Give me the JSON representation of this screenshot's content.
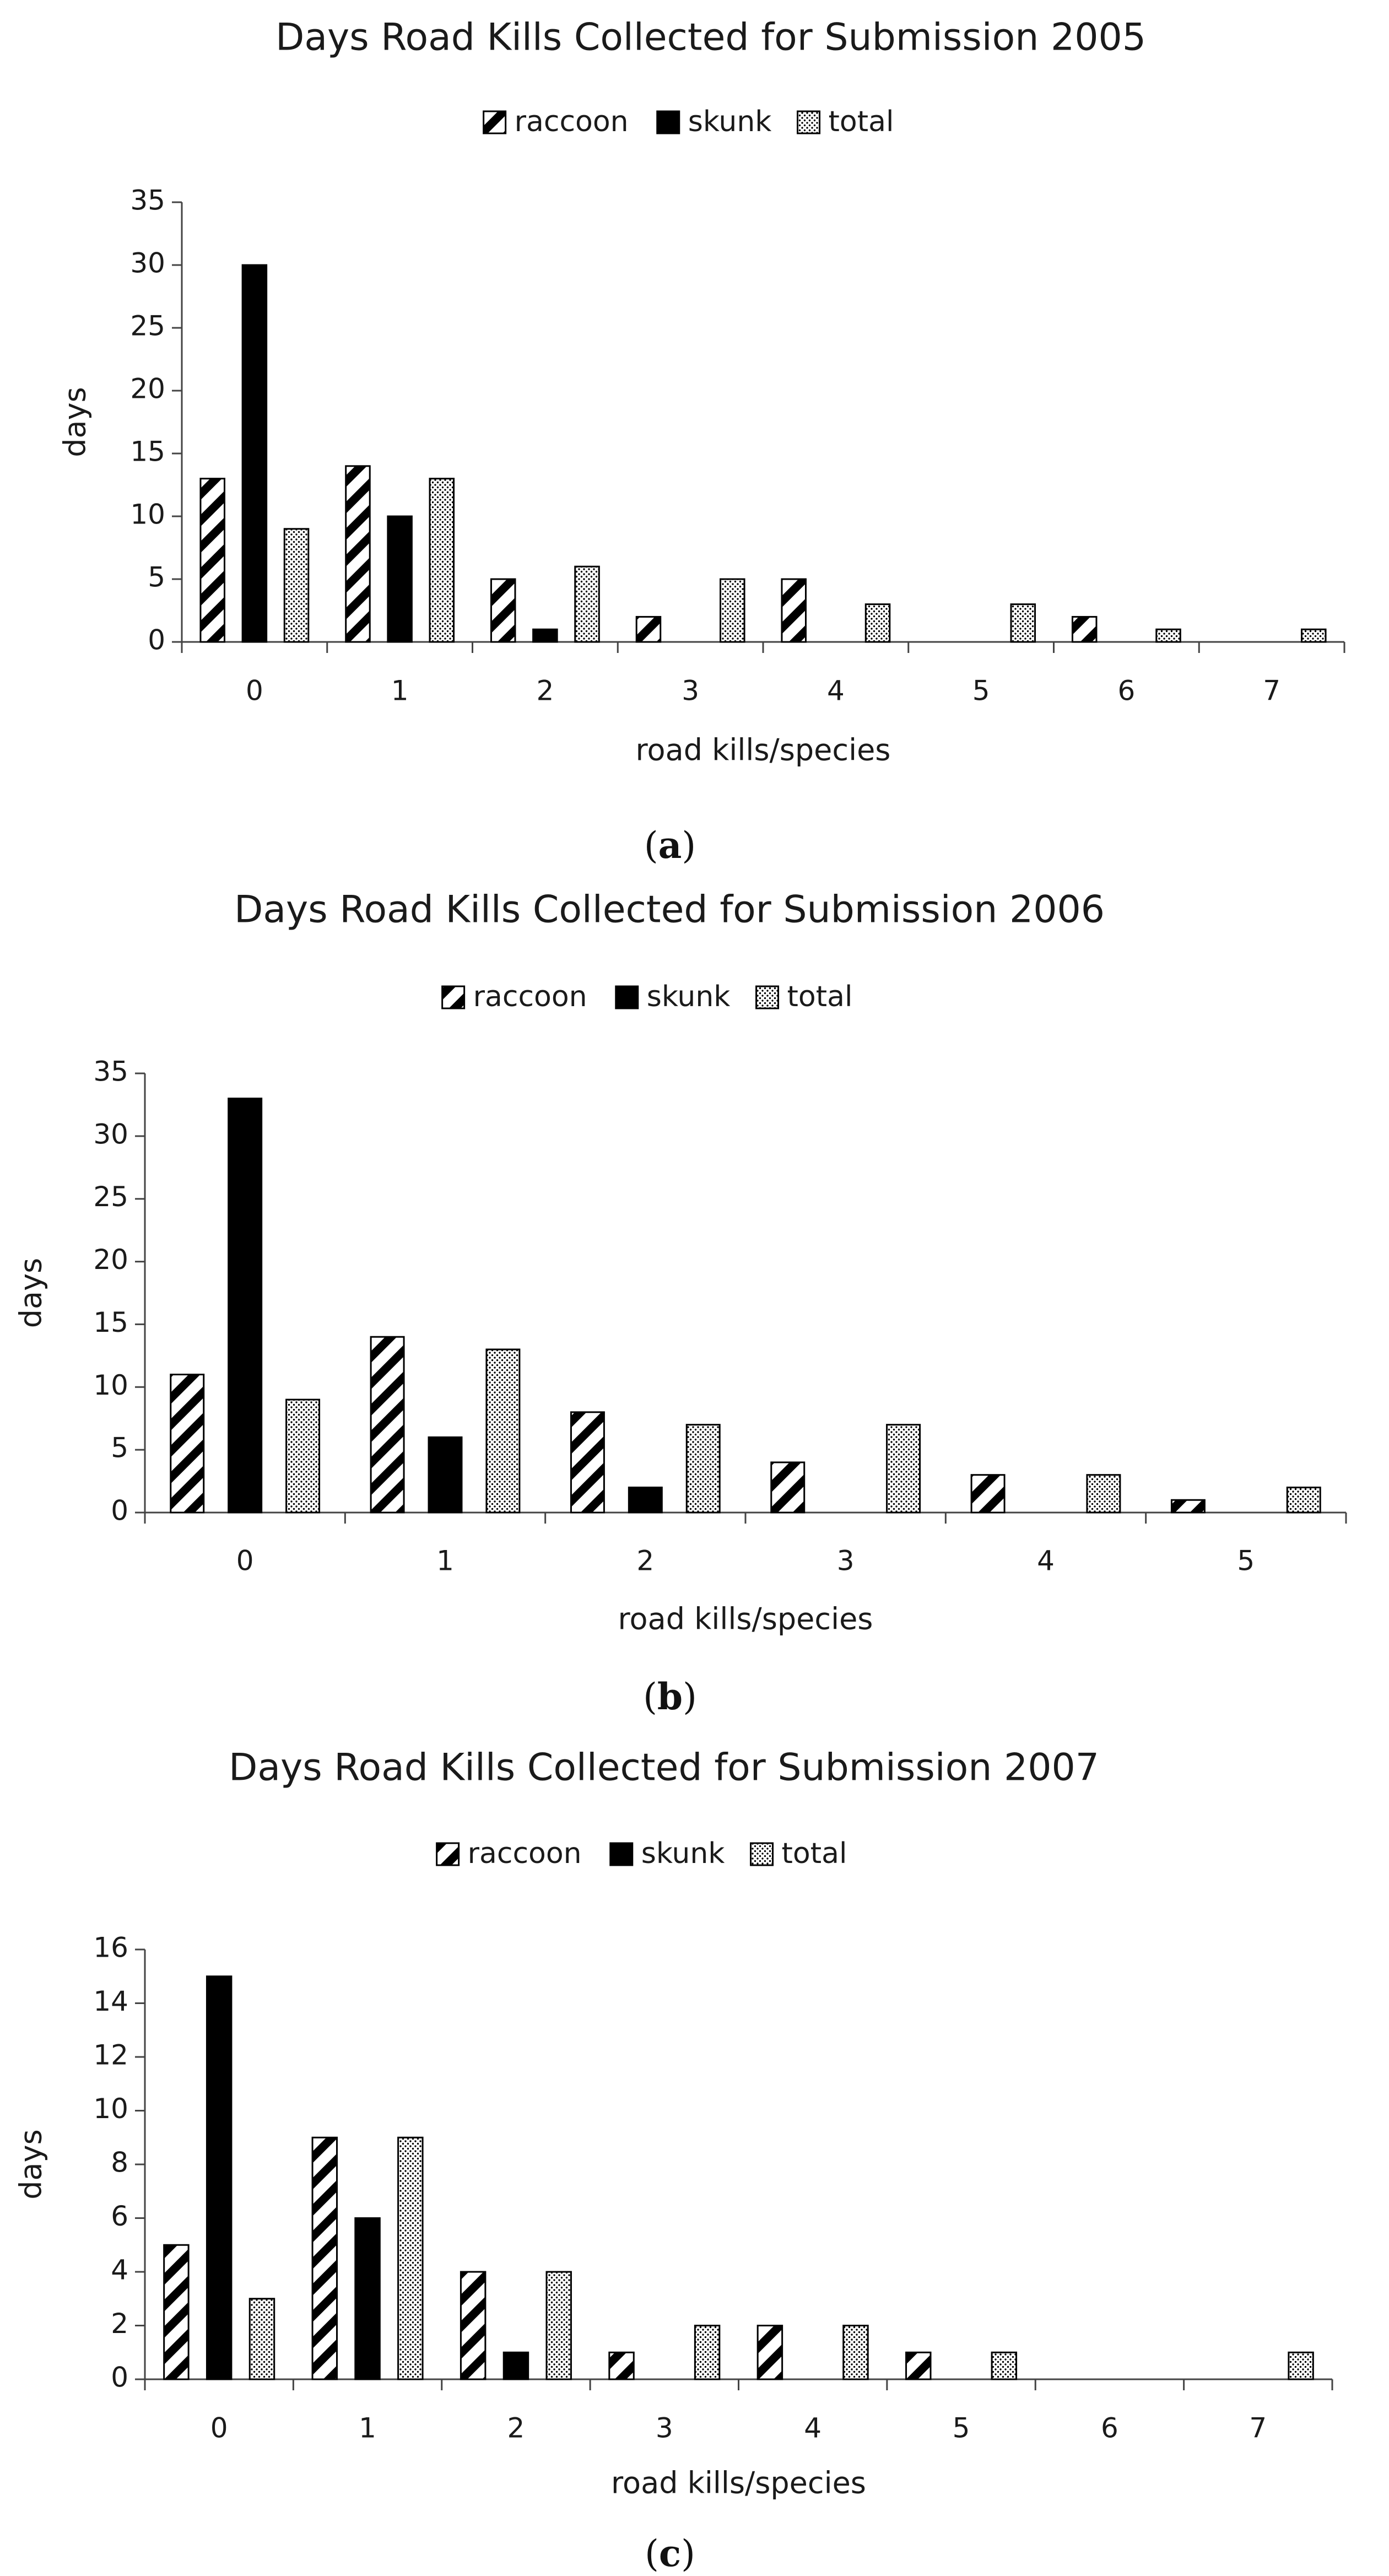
{
  "colors": {
    "ink": "#000000",
    "text": "#1a1a1a",
    "background": "#ffffff"
  },
  "legend": [
    {
      "key": "raccoon",
      "label": "raccoon",
      "pattern": "diagonal-stripes"
    },
    {
      "key": "skunk",
      "label": "skunk",
      "pattern": "solid-black"
    },
    {
      "key": "total",
      "label": "total",
      "pattern": "dotted"
    }
  ],
  "chart_data": [
    {
      "type": "bar",
      "panel": "a",
      "caption": {
        "open": "(",
        "letter": "a",
        "close": ")"
      },
      "title": "Days Road Kills Collected for Submission 2005",
      "xlabel": "road kills/species",
      "ylabel": "days",
      "ylim": [
        0,
        35
      ],
      "yticks": [
        0,
        5,
        10,
        15,
        20,
        25,
        30,
        35
      ],
      "categories": [
        "0",
        "1",
        "2",
        "3",
        "4",
        "5",
        "6",
        "7"
      ],
      "series": [
        {
          "name": "raccoon",
          "values": [
            13,
            14,
            5,
            2,
            5,
            0,
            2,
            0
          ]
        },
        {
          "name": "skunk",
          "values": [
            30,
            10,
            1,
            0,
            0,
            0,
            0,
            0
          ]
        },
        {
          "name": "total",
          "values": [
            9,
            13,
            6,
            5,
            3,
            3,
            1,
            1
          ]
        }
      ],
      "grid": false,
      "legend_position": "top-center"
    },
    {
      "type": "bar",
      "panel": "b",
      "caption": {
        "open": "(",
        "letter": "b",
        "close": ")"
      },
      "title": "Days Road Kills Collected for Submission 2006",
      "xlabel": "road kills/species",
      "ylabel": "days",
      "ylim": [
        0,
        35
      ],
      "yticks": [
        0,
        5,
        10,
        15,
        20,
        25,
        30,
        35
      ],
      "categories": [
        "0",
        "1",
        "2",
        "3",
        "4",
        "5"
      ],
      "series": [
        {
          "name": "raccoon",
          "values": [
            11,
            14,
            8,
            4,
            3,
            1
          ]
        },
        {
          "name": "skunk",
          "values": [
            33,
            6,
            2,
            0,
            0,
            0
          ]
        },
        {
          "name": "total",
          "values": [
            9,
            13,
            7,
            7,
            3,
            2
          ]
        }
      ],
      "grid": false,
      "legend_position": "top-center"
    },
    {
      "type": "bar",
      "panel": "c",
      "caption": {
        "open": "(",
        "letter": "c",
        "close": ")"
      },
      "title": "Days Road Kills Collected for Submission 2007",
      "xlabel": "road kills/species",
      "ylabel": "days",
      "ylim": [
        0,
        16
      ],
      "yticks": [
        0,
        2,
        4,
        6,
        8,
        10,
        12,
        14,
        16
      ],
      "categories": [
        "0",
        "1",
        "2",
        "3",
        "4",
        "5",
        "6",
        "7"
      ],
      "series": [
        {
          "name": "raccoon",
          "values": [
            5,
            9,
            4,
            1,
            2,
            1,
            0,
            0
          ]
        },
        {
          "name": "skunk",
          "values": [
            15,
            6,
            1,
            0,
            0,
            0,
            0,
            0
          ]
        },
        {
          "name": "total",
          "values": [
            3,
            9,
            4,
            2,
            2,
            1,
            0,
            1
          ]
        }
      ],
      "grid": false,
      "legend_position": "top-center"
    }
  ]
}
